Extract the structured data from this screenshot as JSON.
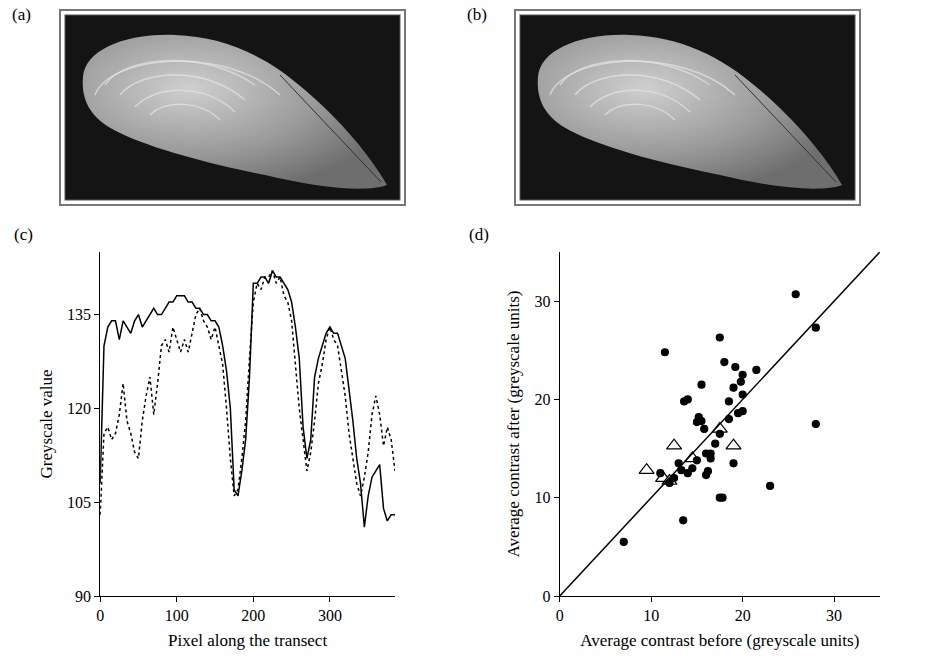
{
  "photos": [
    {
      "title": "(a)"
    },
    {
      "title": "(b)"
    }
  ],
  "chart_data": [
    {
      "type": "line",
      "title": "(c)",
      "x_label": "Pixel along the transect",
      "y_label": "Greyscale value",
      "x": [
        0,
        5,
        10,
        15,
        20,
        25,
        30,
        35,
        40,
        45,
        50,
        55,
        60,
        65,
        70,
        75,
        80,
        85,
        90,
        95,
        100,
        105,
        110,
        115,
        120,
        125,
        130,
        135,
        140,
        145,
        150,
        155,
        160,
        165,
        170,
        175,
        180,
        185,
        190,
        195,
        200,
        205,
        210,
        215,
        220,
        225,
        230,
        235,
        240,
        245,
        250,
        255,
        260,
        265,
        270,
        275,
        280,
        285,
        290,
        295,
        300,
        305,
        310,
        315,
        320,
        325,
        330,
        335,
        340,
        345,
        350,
        355,
        360,
        365,
        370,
        375,
        380,
        385
      ],
      "series": [
        {
          "color": "#000000",
          "line_style": "solid",
          "values": [
            108,
            130,
            133,
            134,
            134,
            131,
            134,
            133,
            132,
            134,
            135,
            133,
            134,
            135,
            136,
            135,
            135,
            136,
            137,
            137,
            138,
            138,
            138,
            137,
            137,
            136,
            136,
            135,
            135,
            134,
            134,
            133,
            130,
            126,
            120,
            107,
            106,
            110,
            115,
            125,
            140,
            140,
            141,
            141,
            140,
            142,
            141,
            141,
            140,
            139,
            137,
            133,
            128,
            117,
            112,
            115,
            125,
            128,
            130,
            132,
            133,
            132,
            132,
            130,
            128,
            123,
            118,
            112,
            108,
            101,
            106,
            109,
            110,
            111,
            104,
            102,
            103,
            103
          ]
        },
        {
          "color": "#000000",
          "line_style": "dotted",
          "values": [
            103,
            116,
            117,
            115,
            116,
            119,
            124,
            118,
            116,
            113,
            112,
            118,
            122,
            125,
            119,
            124,
            130,
            131,
            129,
            133,
            131,
            129,
            131,
            129,
            132,
            135,
            136,
            134,
            133,
            131,
            133,
            130,
            127,
            120,
            112,
            106,
            107,
            112,
            118,
            128,
            137,
            140,
            139,
            141,
            141,
            142,
            140,
            141,
            138,
            137,
            134,
            127,
            120,
            115,
            110,
            113,
            118,
            124,
            127,
            131,
            133,
            131,
            130,
            126,
            122,
            116,
            112,
            108,
            106,
            109,
            113,
            119,
            122,
            119,
            114,
            117,
            115,
            110
          ]
        }
      ],
      "xlim": [
        0,
        385
      ],
      "xticks": [
        0,
        100,
        200,
        300
      ],
      "ylim": [
        90,
        145
      ],
      "yticks": [
        90,
        105,
        120,
        135
      ],
      "grid": false
    },
    {
      "type": "scatter",
      "title": "(d)",
      "x_label": "Average contrast before (greyscale units)",
      "y_label": "Average contrast after (greyscale units)",
      "series": [
        {
          "type": "scatter",
          "color": "#000000",
          "marker": "circle",
          "x": [
            7,
            11,
            11.5,
            12,
            12.5,
            13,
            13.3,
            13.5,
            13.6,
            14,
            14.5,
            15,
            15,
            15.2,
            15.5,
            15.5,
            15.8,
            16,
            16,
            16.2,
            16.5,
            16.5,
            17,
            17.5,
            17.5,
            17.5,
            17.8,
            18,
            18.5,
            18.5,
            19,
            19.2,
            19.5,
            19.8,
            20,
            20,
            21.5,
            23,
            25.8,
            28,
            28,
            19,
            14,
            20
          ],
          "values": [
            5.5,
            12.5,
            24.8,
            11.5,
            12,
            13.5,
            12.8,
            7.7,
            19.8,
            12.5,
            13,
            13.8,
            17.7,
            18.2,
            21.5,
            17.8,
            17,
            12.3,
            14.5,
            12.7,
            14,
            14.5,
            15.5,
            16.5,
            26.3,
            10,
            10,
            23.8,
            18,
            19.8,
            21.2,
            23.3,
            18.6,
            21.8,
            22.5,
            18.8,
            23,
            11.2,
            30.7,
            27.3,
            17.5,
            13.5,
            20,
            20.5
          ]
        },
        {
          "type": "scatter",
          "color": "#000000",
          "marker": "triangle-open",
          "x": [
            9.5,
            11.3,
            12,
            12.5,
            14.5,
            17.5,
            19
          ],
          "values": [
            12.8,
            12,
            11.7,
            15.3,
            14,
            17,
            15.3
          ]
        },
        {
          "type": "line",
          "color": "#000000",
          "line_style": "solid",
          "x": [
            0,
            35
          ],
          "values": [
            0,
            35
          ]
        }
      ],
      "xlim": [
        0,
        35
      ],
      "xticks": [
        0,
        10,
        20,
        30
      ],
      "ylim": [
        0,
        35
      ],
      "yticks": [
        0,
        10,
        20,
        30
      ],
      "grid": false
    }
  ]
}
